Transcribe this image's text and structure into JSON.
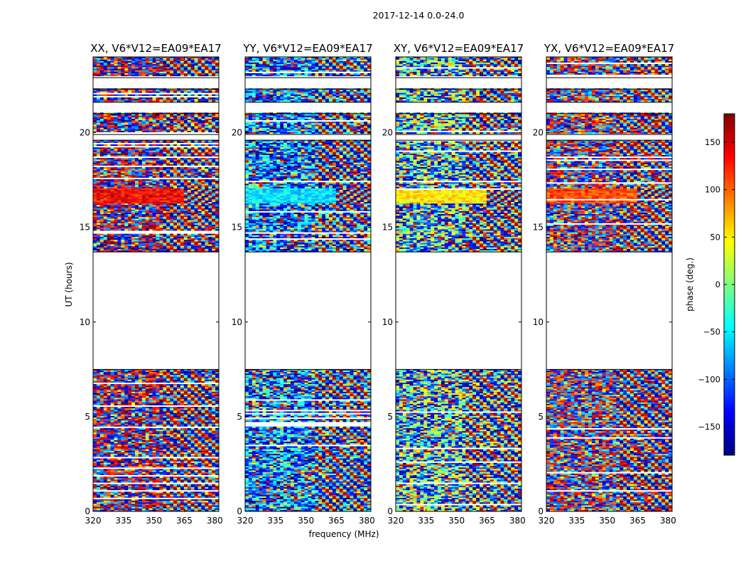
{
  "figure": {
    "suptitle": "2017-12-14 0.0-24.0",
    "xlabel": "frequency (MHz)",
    "ylabel": "UT (hours)"
  },
  "colorbar": {
    "label": "phase (deg.)",
    "range": [
      -180,
      180
    ],
    "ticks": [
      150,
      100,
      50,
      0,
      -50,
      -100,
      -150
    ],
    "tick_labels": [
      "150",
      "100",
      "50",
      "0",
      "−50",
      "−100",
      "−150"
    ],
    "colormap": "jet",
    "colors": [
      "#00007f",
      "#0000ff",
      "#007fff",
      "#00ffff",
      "#7fff7f",
      "#ffff00",
      "#ff7f00",
      "#ff0000",
      "#7f0000"
    ]
  },
  "chart_data": [
    {
      "type": "heatmap",
      "title": "XX, V6*V12=EA09*EA17",
      "x_range": [
        320,
        382
      ],
      "x_ticks": [
        320,
        335,
        350,
        365,
        380
      ],
      "y_range": [
        0,
        24
      ],
      "y_ticks": [
        0,
        5,
        10,
        15,
        20
      ],
      "value": "phase (deg.)",
      "data_time_ranges_hours": [
        [
          0.0,
          7.5
        ],
        [
          13.7,
          24.0
        ]
      ],
      "flagged_gap_hours": [
        [
          7.5,
          13.7
        ],
        [
          21.0,
          21.6
        ],
        [
          19.6,
          19.9
        ],
        [
          22.3,
          22.9
        ]
      ],
      "tone": "red/blue dominated; coherent red band near 16.4-17.0 h"
    },
    {
      "type": "heatmap",
      "title": "YY, V6*V12=EA09*EA17",
      "x_range": [
        320,
        382
      ],
      "x_ticks": [
        320,
        335,
        350,
        365,
        380
      ],
      "y_range": [
        0,
        24
      ],
      "y_ticks": [
        0,
        5,
        10,
        15,
        20
      ],
      "value": "phase (deg.)",
      "data_time_ranges_hours": [
        [
          0.0,
          7.5
        ],
        [
          13.7,
          24.0
        ]
      ],
      "flagged_gap_hours": [
        [
          7.5,
          13.7
        ],
        [
          21.0,
          21.6
        ],
        [
          19.6,
          19.9
        ],
        [
          22.3,
          22.9
        ]
      ],
      "tone": "cyan/blue dominated; coherent cyan band near 16.4-17.0 h"
    },
    {
      "type": "heatmap",
      "title": "XY, V6*V12=EA09*EA17",
      "x_range": [
        320,
        382
      ],
      "x_ticks": [
        320,
        335,
        350,
        365,
        380
      ],
      "y_range": [
        0,
        24
      ],
      "y_ticks": [
        0,
        5,
        10,
        15,
        20
      ],
      "value": "phase (deg.)",
      "data_time_ranges_hours": [
        [
          0.0,
          7.5
        ],
        [
          13.7,
          24.0
        ]
      ],
      "flagged_gap_hours": [
        [
          7.5,
          13.7
        ],
        [
          21.0,
          21.6
        ],
        [
          19.6,
          19.9
        ],
        [
          22.3,
          22.9
        ]
      ],
      "tone": "mixed; orange/yellow band near 16.4-17.0 h"
    },
    {
      "type": "heatmap",
      "title": "YX, V6*V12=EA09*EA17",
      "x_range": [
        320,
        382
      ],
      "x_ticks": [
        320,
        335,
        350,
        365,
        380
      ],
      "y_range": [
        0,
        24
      ],
      "y_ticks": [
        0,
        5,
        10,
        15,
        20
      ],
      "value": "phase (deg.)",
      "data_time_ranges_hours": [
        [
          0.0,
          7.5
        ],
        [
          13.7,
          24.0
        ]
      ],
      "flagged_gap_hours": [
        [
          7.5,
          13.7
        ],
        [
          21.0,
          21.6
        ],
        [
          19.6,
          19.9
        ],
        [
          22.3,
          22.9
        ]
      ],
      "tone": "mixed; blue/red band near 16.4-17.0 h"
    }
  ]
}
